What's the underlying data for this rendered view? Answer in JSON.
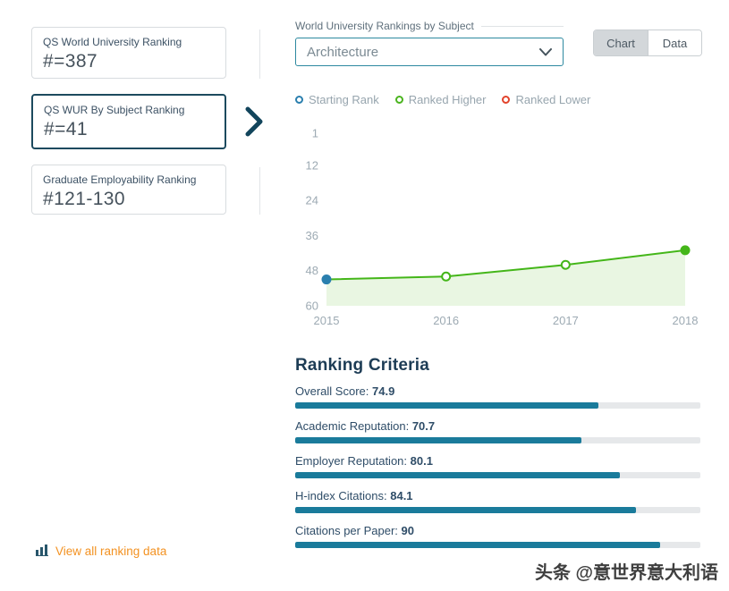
{
  "sidebar": {
    "cards": [
      {
        "label": "QS World University Ranking",
        "value": "#=387"
      },
      {
        "label": "QS WUR By Subject Ranking",
        "value": "#=41"
      },
      {
        "label": "Graduate Employability Ranking",
        "value": "#121-130"
      }
    ]
  },
  "subject_select": {
    "label": "World University Rankings by Subject",
    "value": "Architecture"
  },
  "view_toggle": {
    "chart_label": "Chart",
    "data_label": "Data",
    "active": "Chart"
  },
  "legend": [
    {
      "label": "Starting Rank",
      "color": "#2a7fae"
    },
    {
      "label": "Ranked Higher",
      "color": "#4ab41e"
    },
    {
      "label": "Ranked Lower",
      "color": "#e2432b"
    }
  ],
  "chart_data": {
    "type": "line",
    "x": [
      2015,
      2016,
      2017,
      2018
    ],
    "values": [
      51,
      50,
      46,
      41
    ],
    "series_name": "QS WUR By Subject Rank",
    "y_ticks": [
      1,
      12,
      24,
      36,
      48,
      60
    ],
    "ylim": [
      1,
      60
    ],
    "y_axis_inverted": true,
    "grid": false,
    "legend_position": "top",
    "line_color": "#44b619",
    "area_color": "#e9f6e2",
    "point_styles": [
      {
        "color": "#2a7fae",
        "filled": true
      },
      {
        "color": "#44b619",
        "filled": false
      },
      {
        "color": "#44b619",
        "filled": false
      },
      {
        "color": "#44b619",
        "filled": true
      }
    ]
  },
  "ranking_criteria": {
    "title": "Ranking Criteria",
    "max": 100,
    "items": [
      {
        "label": "Overall Score:",
        "value": 74.9
      },
      {
        "label": "Academic Reputation:",
        "value": 70.7
      },
      {
        "label": "Employer Reputation:",
        "value": 80.1
      },
      {
        "label": "H-index Citations:",
        "value": 84.1
      },
      {
        "label": "Citations per Paper:",
        "value": 90
      }
    ]
  },
  "footer_link": {
    "label": "View all ranking data"
  },
  "watermark": "头条 @意世界意大利语",
  "colors": {
    "bar_fill": "#1a7b9b",
    "bar_track": "#e6e8ea",
    "accent_orange": "#f39222",
    "selected_card_border": "#1c4a5e",
    "select_border": "#2d89a0"
  }
}
